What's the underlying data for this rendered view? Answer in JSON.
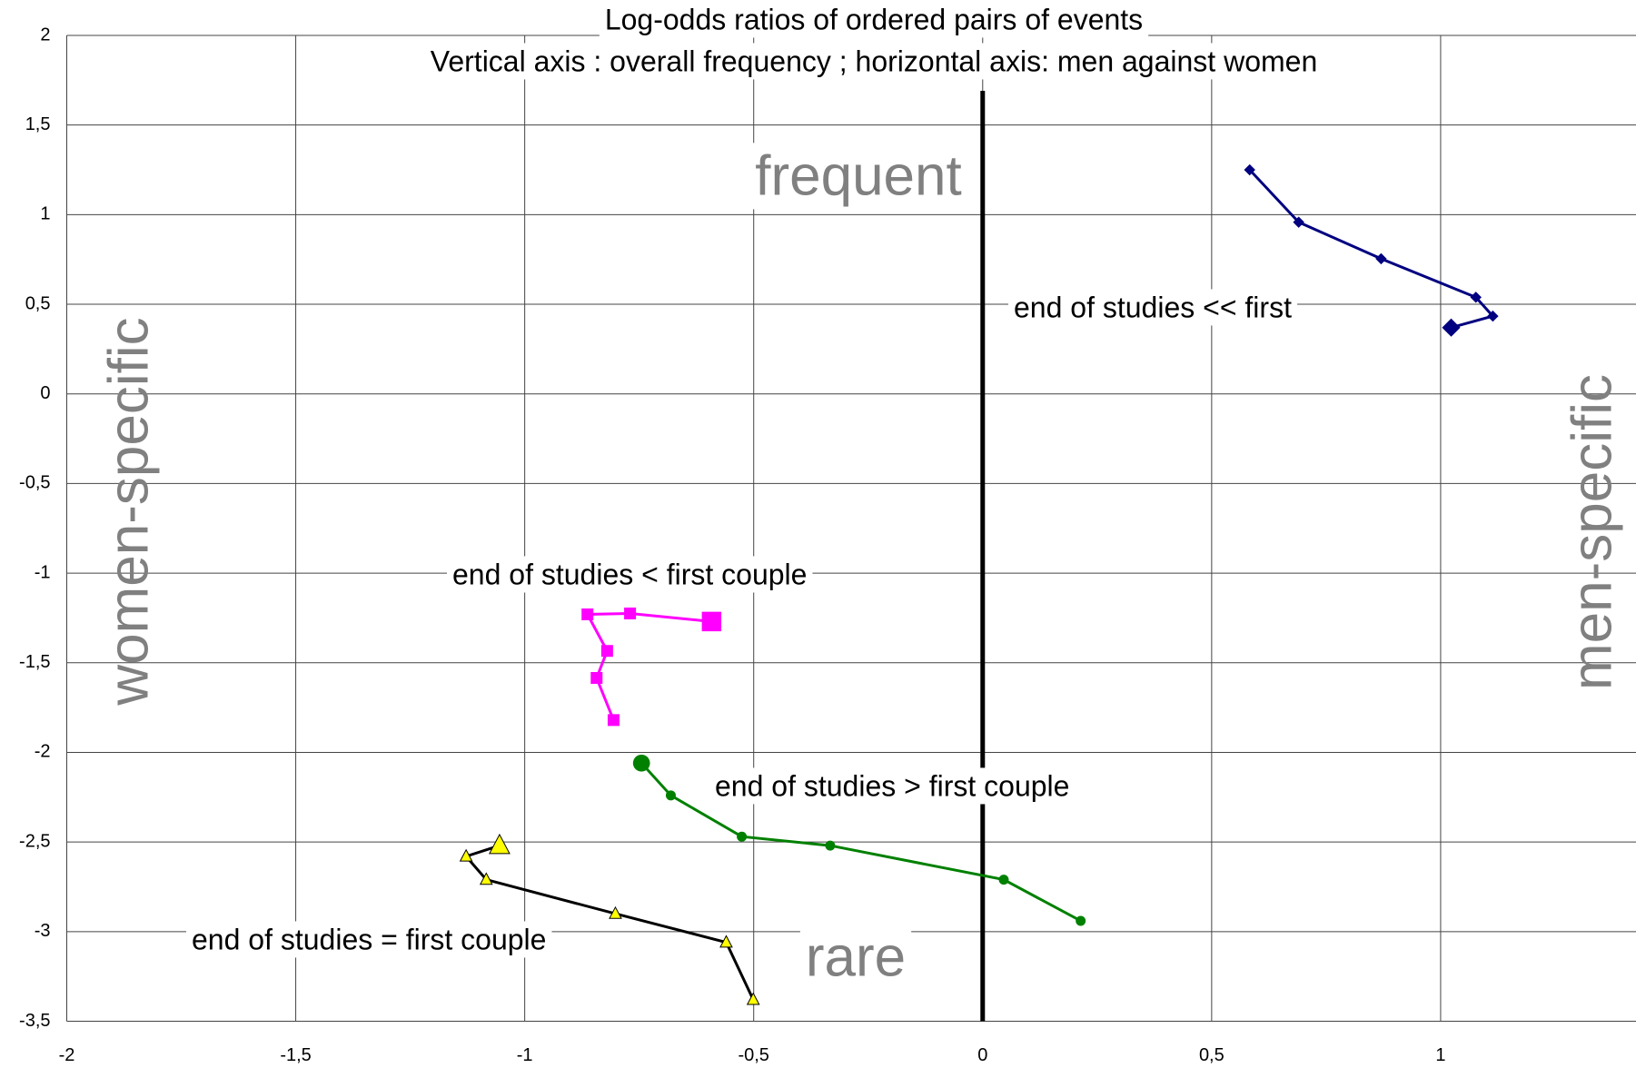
{
  "chart_data": {
    "type": "line",
    "title": [
      "Log-odds ratios of ordered pairs of events",
      "Vertical axis : overall frequency ; horizontal axis: men against women"
    ],
    "annotations": [
      "frequent",
      "rare",
      "women-specific",
      "men-specific"
    ],
    "xlim": [
      -2,
      1.5
    ],
    "ylim": [
      -3.5,
      2
    ],
    "xticks": [
      -2,
      {
        "value": -1.5,
        "label": "-1,5"
      },
      -1,
      {
        "value": -0.5,
        "label": "-0,5"
      },
      0,
      {
        "value": 0.5,
        "label": "0,5"
      },
      1
    ],
    "yticks": [
      2,
      {
        "value": 1.5,
        "label": "1,5"
      },
      1,
      {
        "value": 0.5,
        "label": "0,5"
      },
      0,
      {
        "value": -0.5,
        "label": "-0,5"
      },
      -1,
      {
        "value": -1.5,
        "label": "-1,5"
      },
      -2,
      {
        "value": -2.5,
        "label": "-2,5"
      },
      -3,
      {
        "value": -3.5,
        "label": "-3,5"
      }
    ],
    "grid": true,
    "series": [
      {
        "name": "end of studies << first",
        "color": "#000080",
        "marker": "diamond",
        "marker_color": "#000080",
        "x": [
          0.583,
          0.69,
          0.87,
          1.077,
          1.114,
          1.023
        ],
        "values": [
          1.25,
          0.958,
          0.754,
          0.539,
          0.434,
          0.37
        ]
      },
      {
        "name": "end of studies < first couple",
        "color": "#ff00ff",
        "marker": "square",
        "marker_color": "#ff00ff",
        "x": [
          -0.806,
          -0.843,
          -0.82,
          -0.863,
          -0.77,
          -0.592
        ],
        "values": [
          -1.82,
          -1.585,
          -1.434,
          -1.23,
          -1.225,
          -1.27
        ]
      },
      {
        "name": "end of studies > first couple",
        "color": "#008000",
        "marker": "circle",
        "marker_color": "#008000",
        "x": [
          0.214,
          0.046,
          -0.333,
          -0.526,
          -0.681,
          -0.745
        ],
        "values": [
          -2.94,
          -2.71,
          -2.52,
          -2.47,
          -2.24,
          -2.06
        ]
      },
      {
        "name": "end of studies = first couple",
        "color": "#000000",
        "marker": "triangle",
        "marker_color": "#ffff00",
        "x": [
          -0.501,
          -0.56,
          -0.802,
          -1.084,
          -1.128,
          -1.055
        ],
        "values": [
          -3.38,
          -3.06,
          -2.9,
          -2.71,
          -2.58,
          -2.52
        ]
      }
    ]
  }
}
